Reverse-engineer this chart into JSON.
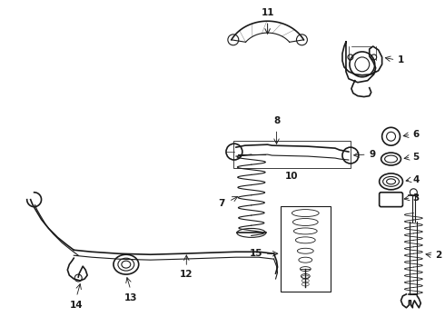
{
  "bg_color": "#ffffff",
  "fig_width": 4.9,
  "fig_height": 3.6,
  "dpi": 100,
  "line_color": "#1a1a1a",
  "text_color": "#1a1a1a",
  "label_font_size": 7.5
}
